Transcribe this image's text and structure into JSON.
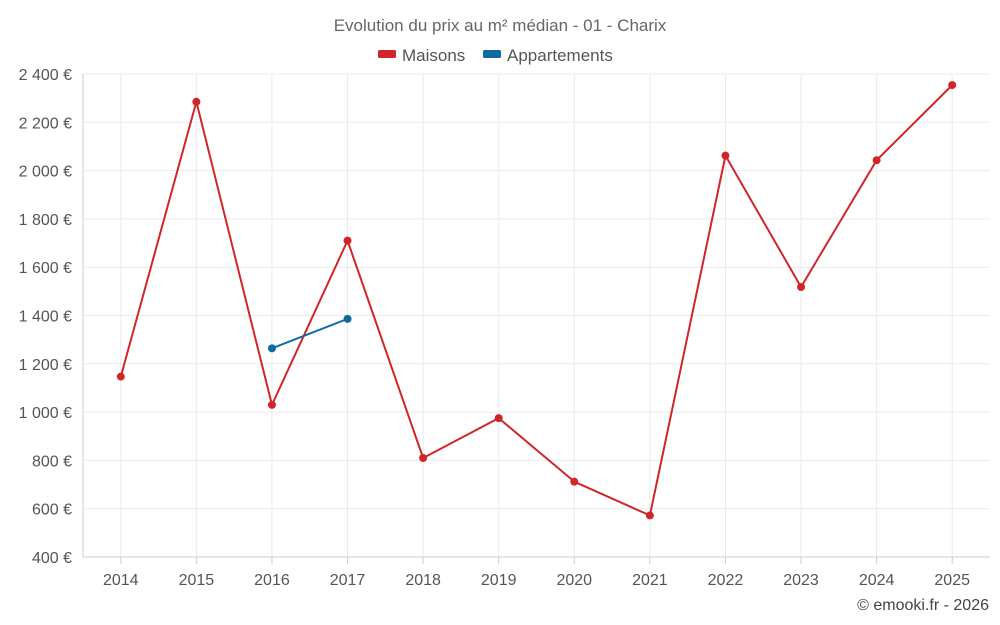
{
  "chart_data": {
    "type": "line",
    "title": "Evolution du prix au m² médian - 01 - Charix",
    "categories": [
      "2014",
      "2015",
      "2016",
      "2017",
      "2018",
      "2019",
      "2020",
      "2021",
      "2022",
      "2023",
      "2024",
      "2025"
    ],
    "ylim": [
      400,
      2400
    ],
    "yticks": [
      400,
      600,
      800,
      1000,
      1200,
      1400,
      1600,
      1800,
      2000,
      2200,
      2400
    ],
    "ytick_labels": [
      "400 €",
      "600 €",
      "800 €",
      "1 000 €",
      "1 200 €",
      "1 400 €",
      "1 600 €",
      "1 800 €",
      "2 000 €",
      "2 200 €",
      "2 400 €"
    ],
    "grid": true,
    "legend_position": "top-center",
    "series": [
      {
        "name": "Maisons",
        "color": "#d0262a",
        "values": [
          1147,
          2285,
          1030,
          1710,
          810,
          975,
          712,
          572,
          2062,
          1518,
          2043,
          2354
        ]
      },
      {
        "name": "Appartements",
        "color": "#0e6aa0",
        "values": [
          null,
          null,
          1264,
          1386,
          null,
          null,
          null,
          null,
          null,
          null,
          null,
          null
        ]
      }
    ]
  },
  "credit": "© emooki.fr - 2026"
}
